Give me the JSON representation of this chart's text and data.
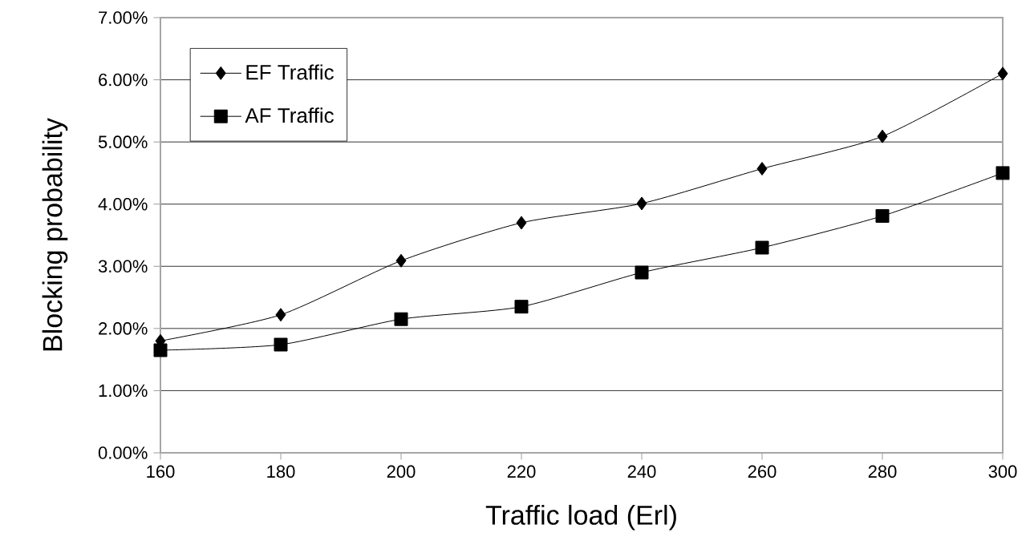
{
  "chart_data": {
    "type": "line",
    "xlabel": "Traffic load (Erl)",
    "ylabel": "Blocking probability",
    "x": [
      160,
      180,
      200,
      220,
      240,
      260,
      280,
      300
    ],
    "series": [
      {
        "name": "EF Traffic",
        "color": "#000000",
        "marker": "diamond",
        "values": [
          1.8,
          2.22,
          3.09,
          3.7,
          4.01,
          4.57,
          5.09,
          6.1
        ]
      },
      {
        "name": "AF Traffic",
        "color": "#000000",
        "marker": "square",
        "values": [
          1.65,
          1.74,
          2.15,
          2.35,
          2.9,
          3.3,
          3.81,
          4.5
        ]
      }
    ],
    "xlim": [
      160,
      300
    ],
    "ylim": [
      0,
      7
    ],
    "xticks": [
      160,
      180,
      200,
      220,
      240,
      260,
      280,
      300
    ],
    "yticks": [
      {
        "value": 0,
        "label": "0.00%"
      },
      {
        "value": 1,
        "label": "1.00%"
      },
      {
        "value": 2,
        "label": "2.00%"
      },
      {
        "value": 3,
        "label": "3.00%"
      },
      {
        "value": 4,
        "label": "4.00%"
      },
      {
        "value": 5,
        "label": "5.00%"
      },
      {
        "value": 6,
        "label": "6.00%"
      },
      {
        "value": 7,
        "label": "7.00%"
      }
    ],
    "grid": "y",
    "legend": "top left",
    "line_style": "solid"
  }
}
